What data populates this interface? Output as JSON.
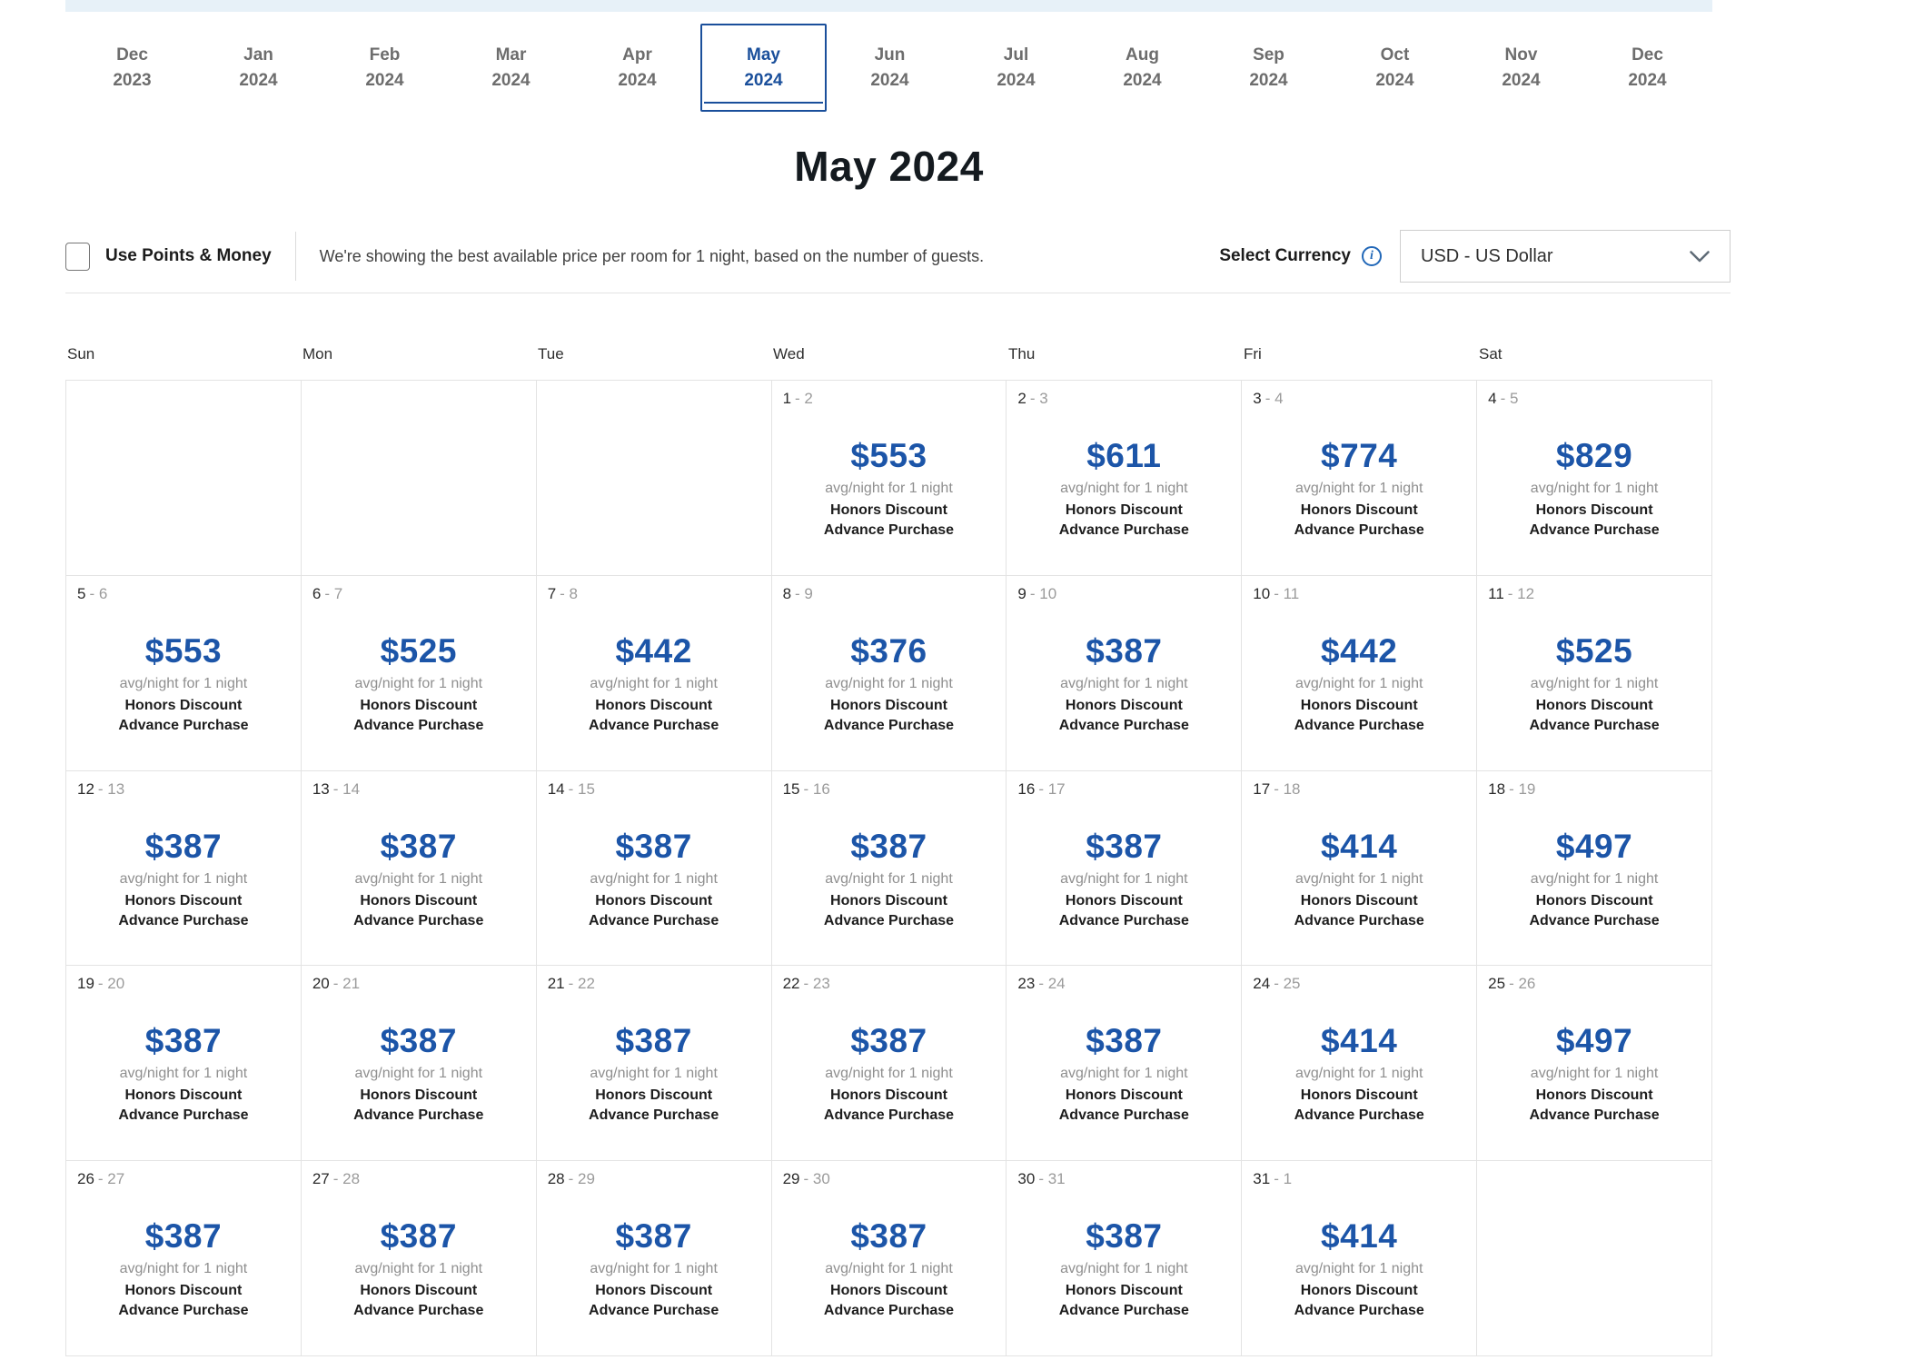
{
  "colors": {
    "accent": "#1a4f9b",
    "price_blue": "#1c55a8",
    "top_bar": "#e7f1f8"
  },
  "month_tabs": {
    "selected_index": 5,
    "items": [
      {
        "month": "Dec",
        "year": "2023"
      },
      {
        "month": "Jan",
        "year": "2024"
      },
      {
        "month": "Feb",
        "year": "2024"
      },
      {
        "month": "Mar",
        "year": "2024"
      },
      {
        "month": "Apr",
        "year": "2024"
      },
      {
        "month": "May",
        "year": "2024"
      },
      {
        "month": "Jun",
        "year": "2024"
      },
      {
        "month": "Jul",
        "year": "2024"
      },
      {
        "month": "Aug",
        "year": "2024"
      },
      {
        "month": "Sep",
        "year": "2024"
      },
      {
        "month": "Oct",
        "year": "2024"
      },
      {
        "month": "Nov",
        "year": "2024"
      },
      {
        "month": "Dec",
        "year": "2024"
      }
    ]
  },
  "heading": {
    "title": "May 2024"
  },
  "controls": {
    "use_points_label": "Use Points & Money",
    "info_text": "We're showing the best available price per room for 1 night, based on the number of guests.",
    "currency_label": "Select Currency",
    "info_icon": "i",
    "currency_value": "USD - US Dollar"
  },
  "calendar": {
    "weekdays": [
      "Sun",
      "Mon",
      "Tue",
      "Wed",
      "Thu",
      "Fri",
      "Sat"
    ],
    "avg_label": "avg/night for 1 night",
    "rate_name": "Honors Discount Advance Purchase",
    "range_separator": "-",
    "weeks": [
      [
        null,
        null,
        null,
        {
          "day": "1",
          "to": "2",
          "price": "$553"
        },
        {
          "day": "2",
          "to": "3",
          "price": "$611"
        },
        {
          "day": "3",
          "to": "4",
          "price": "$774"
        },
        {
          "day": "4",
          "to": "5",
          "price": "$829"
        }
      ],
      [
        {
          "day": "5",
          "to": "6",
          "price": "$553"
        },
        {
          "day": "6",
          "to": "7",
          "price": "$525"
        },
        {
          "day": "7",
          "to": "8",
          "price": "$442"
        },
        {
          "day": "8",
          "to": "9",
          "price": "$376"
        },
        {
          "day": "9",
          "to": "10",
          "price": "$387"
        },
        {
          "day": "10",
          "to": "11",
          "price": "$442"
        },
        {
          "day": "11",
          "to": "12",
          "price": "$525"
        }
      ],
      [
        {
          "day": "12",
          "to": "13",
          "price": "$387"
        },
        {
          "day": "13",
          "to": "14",
          "price": "$387"
        },
        {
          "day": "14",
          "to": "15",
          "price": "$387"
        },
        {
          "day": "15",
          "to": "16",
          "price": "$387"
        },
        {
          "day": "16",
          "to": "17",
          "price": "$387"
        },
        {
          "day": "17",
          "to": "18",
          "price": "$414"
        },
        {
          "day": "18",
          "to": "19",
          "price": "$497"
        }
      ],
      [
        {
          "day": "19",
          "to": "20",
          "price": "$387"
        },
        {
          "day": "20",
          "to": "21",
          "price": "$387"
        },
        {
          "day": "21",
          "to": "22",
          "price": "$387"
        },
        {
          "day": "22",
          "to": "23",
          "price": "$387"
        },
        {
          "day": "23",
          "to": "24",
          "price": "$387"
        },
        {
          "day": "24",
          "to": "25",
          "price": "$414"
        },
        {
          "day": "25",
          "to": "26",
          "price": "$497"
        }
      ],
      [
        {
          "day": "26",
          "to": "27",
          "price": "$387"
        },
        {
          "day": "27",
          "to": "28",
          "price": "$387"
        },
        {
          "day": "28",
          "to": "29",
          "price": "$387"
        },
        {
          "day": "29",
          "to": "30",
          "price": "$387"
        },
        {
          "day": "30",
          "to": "31",
          "price": "$387"
        },
        {
          "day": "31",
          "to": "1",
          "price": "$414"
        },
        null
      ]
    ]
  }
}
